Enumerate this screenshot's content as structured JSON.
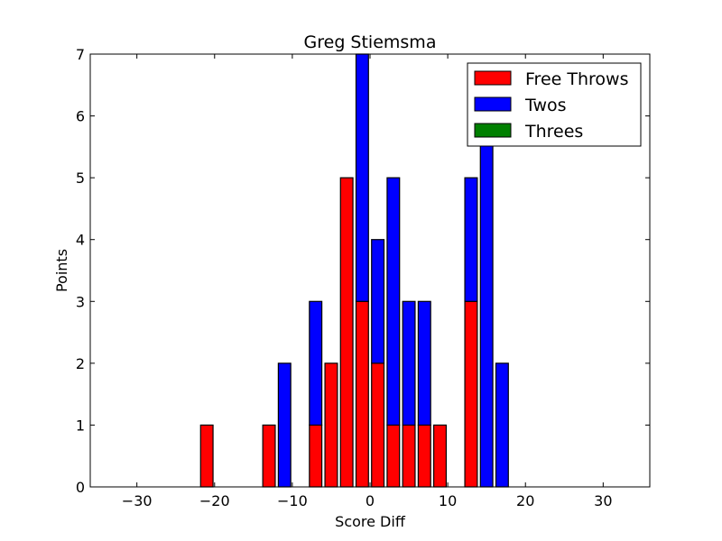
{
  "chart_data": {
    "type": "bar",
    "stacked": true,
    "title": "Greg Stiemsma",
    "xlabel": "Score Diff",
    "ylabel": "Points",
    "xlim": [
      -36,
      36
    ],
    "ylim": [
      0,
      7
    ],
    "xticks": [
      -30,
      -20,
      -10,
      0,
      10,
      20,
      30
    ],
    "xtick_labels": [
      "−30",
      "−20",
      "−10",
      "0",
      "10",
      "20",
      "30"
    ],
    "yticks": [
      0,
      1,
      2,
      3,
      4,
      5,
      6,
      7
    ],
    "ytick_labels": [
      "0",
      "1",
      "2",
      "3",
      "4",
      "5",
      "6",
      "7"
    ],
    "bar_width": 1.6,
    "x": [
      -35,
      -33,
      -31,
      -29,
      -27,
      -25,
      -23,
      -21,
      -19,
      -17,
      -15,
      -13,
      -11,
      -9,
      -7,
      -5,
      -3,
      -1,
      1,
      3,
      5,
      7,
      9,
      11,
      13,
      15,
      17,
      19,
      21,
      23,
      25,
      27,
      29,
      31,
      33,
      35
    ],
    "series": [
      {
        "name": "Free Throws",
        "color": "#ff0000",
        "values": [
          0,
          0,
          0,
          0,
          0,
          0,
          0,
          1,
          0,
          0,
          0,
          1,
          0,
          0,
          1,
          2,
          5,
          3,
          2,
          1,
          1,
          1,
          1,
          0,
          3,
          0,
          0,
          0,
          0,
          0,
          0,
          0,
          0,
          0,
          0,
          0
        ]
      },
      {
        "name": "Twos",
        "color": "#0000ff",
        "values": [
          0,
          0,
          0,
          0,
          0,
          0,
          0,
          0,
          0,
          0,
          0,
          0,
          2,
          0,
          2,
          0,
          0,
          4,
          2,
          4,
          2,
          2,
          0,
          0,
          2,
          6,
          2,
          0,
          0,
          0,
          0,
          0,
          0,
          0,
          0,
          0
        ]
      },
      {
        "name": "Threes",
        "color": "#008000",
        "values": [
          0,
          0,
          0,
          0,
          0,
          0,
          0,
          0,
          0,
          0,
          0,
          0,
          0,
          0,
          0,
          0,
          0,
          0,
          0,
          0,
          0,
          0,
          0,
          0,
          0,
          0,
          0,
          0,
          0,
          0,
          0,
          0,
          0,
          0,
          0,
          0
        ]
      }
    ],
    "legend_position": "top-right",
    "grid": false
  }
}
